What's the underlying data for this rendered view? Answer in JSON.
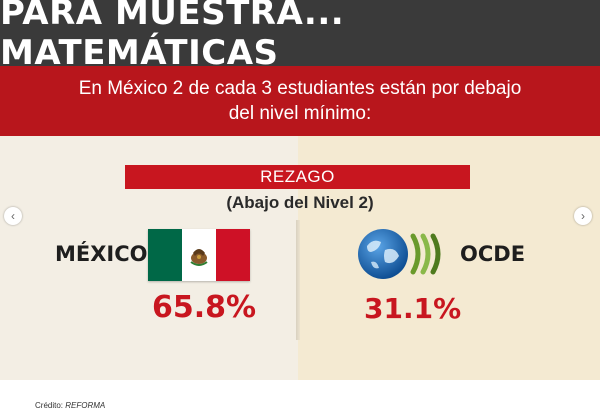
{
  "header": {
    "title": "PARA MUESTRA... MATEMÁTICAS"
  },
  "subheader": {
    "text": "En México 2 de cada 3 estudiantes están por debajo del nivel mínimo:"
  },
  "badge": {
    "label": "REZAGO",
    "sublabel": "(Abajo del Nivel 2)"
  },
  "mexico": {
    "label": "MÉXICO",
    "value": "65.8",
    "unit": "%"
  },
  "oecd": {
    "label": "OCDE",
    "value": "31.1",
    "unit": "%"
  },
  "nav": {
    "prev_icon": "chevron-left-icon",
    "next_icon": "chevron-right-icon"
  },
  "credit": {
    "label": "Crédito:",
    "source": "REFORMA"
  },
  "colors": {
    "header_bg": "#3a3a3a",
    "accent_red": "#c8161f",
    "panel_left": "#f3eee4",
    "panel_right": "#f4ead2",
    "flag_green": "#006847",
    "flag_red": "#ce1126",
    "oecd_blue": "#1f6fb5",
    "oecd_green": "#6a9a2c"
  }
}
